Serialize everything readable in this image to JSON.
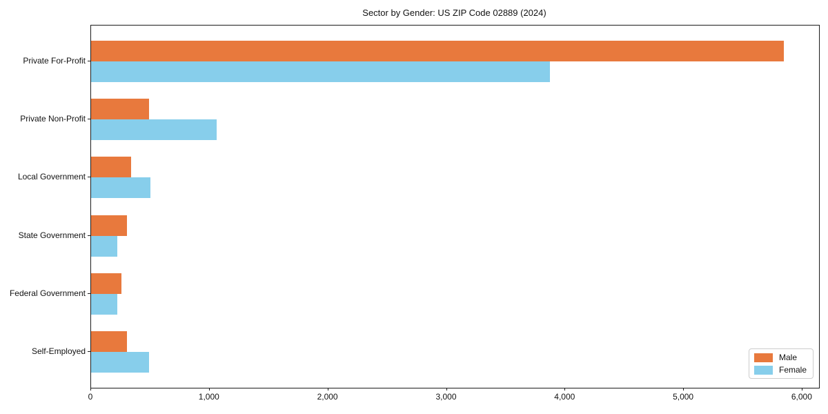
{
  "chart_data": {
    "type": "bar",
    "orientation": "horizontal",
    "title": "Sector by Gender: US ZIP Code 02889 (2024)",
    "categories": [
      "Private For-Profit",
      "Private Non-Profit",
      "Local Government",
      "State Government",
      "Federal Government",
      "Self-Employed"
    ],
    "series": [
      {
        "name": "Male",
        "color": "#E8793D",
        "values": [
          5845,
          490,
          340,
          300,
          255,
          300
        ]
      },
      {
        "name": "Female",
        "color": "#87CEEB",
        "values": [
          3870,
          1060,
          500,
          220,
          220,
          490
        ]
      }
    ],
    "xlabel": "",
    "ylabel": "",
    "xlim": [
      0,
      6140
    ],
    "xticks": [
      0,
      1000,
      2000,
      3000,
      4000,
      5000,
      6000
    ],
    "xtick_labels": [
      "0",
      "1,000",
      "2,000",
      "3,000",
      "4,000",
      "5,000",
      "6,000"
    ],
    "grid": false,
    "legend": {
      "position": "lower-right",
      "entries": [
        "Male",
        "Female"
      ]
    }
  },
  "colors": {
    "male": "#E8793D",
    "female": "#87CEEB",
    "axis": "#1a1a1a",
    "legend_border": "#cccccc",
    "background": "#ffffff"
  }
}
